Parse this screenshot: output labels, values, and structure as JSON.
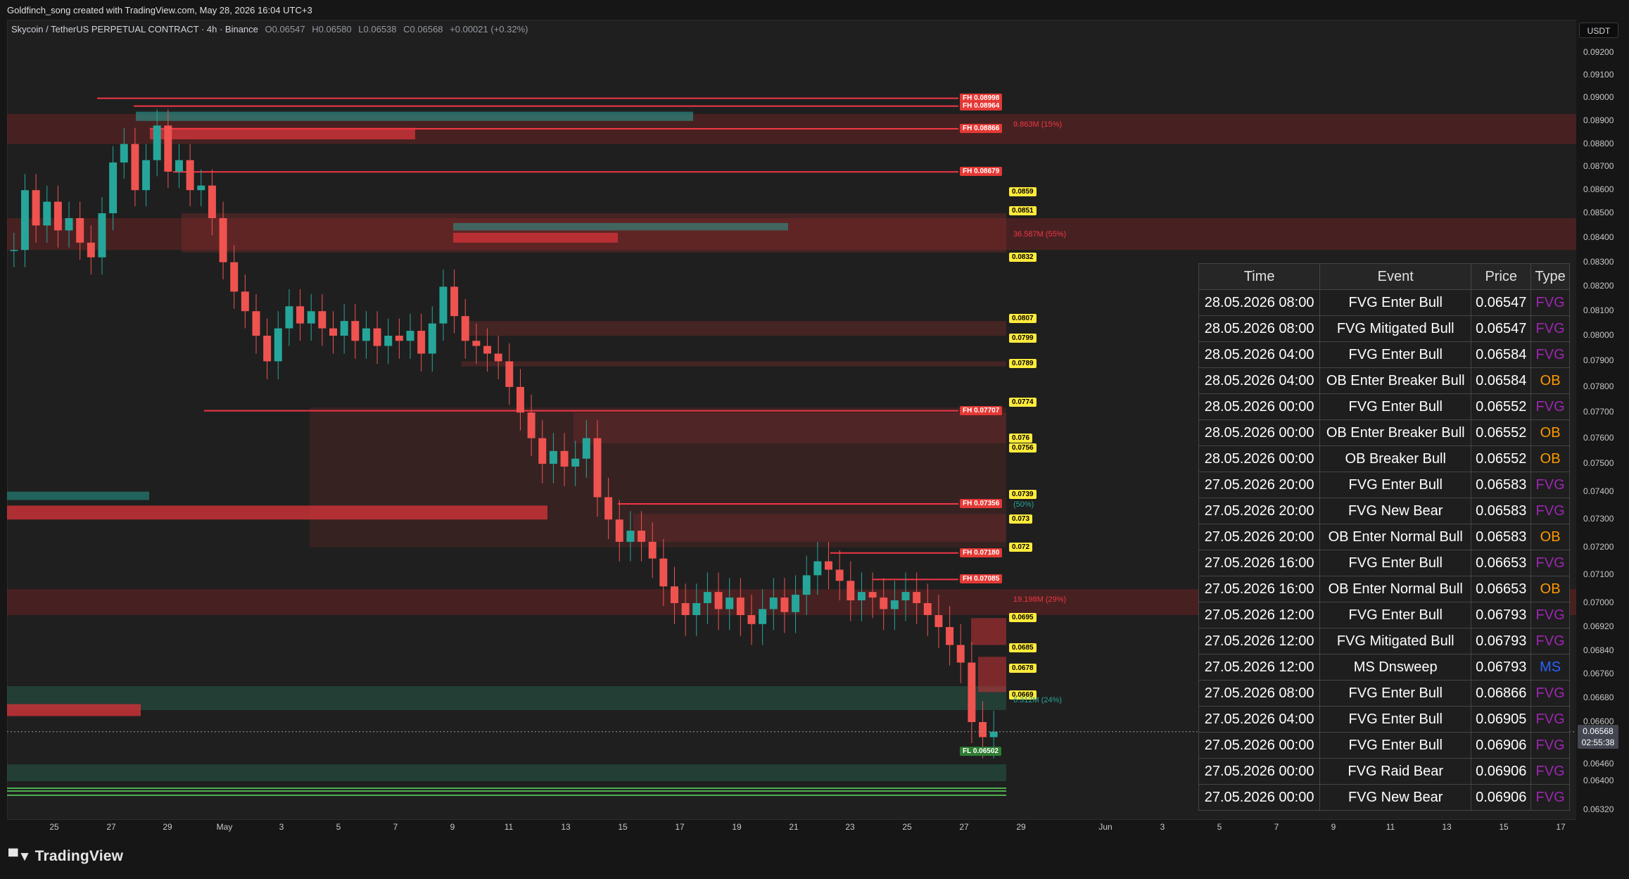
{
  "header": {
    "title": "Goldfinch_song created with TradingView.com, May 28, 2026 16:04 UTC+3"
  },
  "symbol": {
    "name": "Skycoin / TetherUS PERPETUAL CONTRACT · 4h · Binance",
    "o_label": "O",
    "o": "0.06547",
    "h_label": "H",
    "h": "0.06580",
    "l_label": "L",
    "l": "0.06538",
    "c_label": "C",
    "c": "0.06568",
    "change": "+0.00021 (+0.32%)"
  },
  "price_axis": {
    "currency": "USDT",
    "current_price": "0.06568",
    "countdown": "02:55:38"
  },
  "colors": {
    "bull": "#26a69a",
    "bear": "#ef5350",
    "fh_line": "#f23645",
    "level_label": "#ffeb3b",
    "background": "#1f1f1f"
  },
  "chart_data": {
    "type": "candlestick",
    "y_ticks": [
      "0.09200",
      "0.09100",
      "0.09000",
      "0.08900",
      "0.08800",
      "0.08700",
      "0.08600",
      "0.08500",
      "0.08400",
      "0.08300",
      "0.08200",
      "0.08100",
      "0.08000",
      "0.07900",
      "0.07800",
      "0.07700",
      "0.07600",
      "0.07500",
      "0.07400",
      "0.07300",
      "0.07200",
      "0.07100",
      "0.07000",
      "0.06920",
      "0.06840",
      "0.06760",
      "0.06680",
      "0.06600",
      "0.06460",
      "0.06400",
      "0.06320"
    ],
    "x_ticks": [
      "25",
      "27",
      "29",
      "May",
      "3",
      "5",
      "7",
      "9",
      "11",
      "13",
      "15",
      "17",
      "19",
      "21",
      "23",
      "25",
      "27",
      "29",
      "Jun",
      "3",
      "5",
      "7",
      "9",
      "11",
      "13",
      "15",
      "17"
    ],
    "close_path": [
      0.0835,
      0.086,
      0.0845,
      0.0855,
      0.0843,
      0.0848,
      0.0838,
      0.0832,
      0.085,
      0.0872,
      0.088,
      0.086,
      0.0873,
      0.0888,
      0.0868,
      0.0873,
      0.086,
      0.0862,
      0.0848,
      0.083,
      0.0818,
      0.081,
      0.08,
      0.079,
      0.0803,
      0.0812,
      0.0805,
      0.081,
      0.0803,
      0.08,
      0.0806,
      0.0798,
      0.0803,
      0.0796,
      0.08,
      0.0798,
      0.0802,
      0.0793,
      0.0805,
      0.082,
      0.0808,
      0.0798,
      0.0796,
      0.0793,
      0.079,
      0.078,
      0.077,
      0.076,
      0.075,
      0.0755,
      0.0749,
      0.0752,
      0.076,
      0.0738,
      0.073,
      0.0722,
      0.0726,
      0.0722,
      0.0716,
      0.0706,
      0.07,
      0.0696,
      0.07,
      0.0704,
      0.0698,
      0.0702,
      0.0696,
      0.0693,
      0.0698,
      0.0702,
      0.0697,
      0.0703,
      0.071,
      0.0715,
      0.0712,
      0.0708,
      0.0701,
      0.0704,
      0.0702,
      0.0698,
      0.0701,
      0.0704,
      0.07,
      0.0696,
      0.0692,
      0.0686,
      0.068,
      0.066,
      0.0655,
      0.06568
    ],
    "fh_levels": [
      {
        "label": "FH 0.08998",
        "price": 0.08998
      },
      {
        "label": "FH 0.08964",
        "price": 0.08964
      },
      {
        "label": "FH 0.08866",
        "price": 0.08866
      },
      {
        "label": "FH 0.08679",
        "price": 0.08679
      },
      {
        "label": "FH 0.07707",
        "price": 0.07707
      },
      {
        "label": "FH 0.07356",
        "price": 0.07356
      },
      {
        "label": "FH 0.07180",
        "price": 0.0718
      },
      {
        "label": "FH 0.07085",
        "price": 0.07085
      }
    ],
    "fl_level": {
      "label": "FL 0.06502",
      "price": 0.06502
    },
    "levels": [
      "0.0859",
      "0.0851",
      "0.0832",
      "0.0807",
      "0.0799",
      "0.0789",
      "0.0774",
      "0.076",
      "0.0756",
      "0.0739",
      "0.073",
      "0.072",
      "0.0695",
      "0.0685",
      "0.0678",
      "0.0669"
    ],
    "volume_profile": [
      {
        "label": "9.863M (15%)"
      },
      {
        "label": "36.587M (55%)"
      },
      {
        "label": "(50%)"
      },
      {
        "label": "19.198M (29%)"
      },
      {
        "label": "6.312M (24%)"
      }
    ]
  },
  "events_table": {
    "headers": [
      "Time",
      "Event",
      "Price",
      "Type"
    ],
    "rows": [
      [
        "28.05.2026 08:00",
        "FVG Enter Bull",
        "0.06547",
        "FVG"
      ],
      [
        "28.05.2026 08:00",
        "FVG Mitigated Bull",
        "0.06547",
        "FVG"
      ],
      [
        "28.05.2026 04:00",
        "FVG Enter Bull",
        "0.06584",
        "FVG"
      ],
      [
        "28.05.2026 04:00",
        "OB Enter Breaker Bull",
        "0.06584",
        "OB"
      ],
      [
        "28.05.2026 00:00",
        "FVG Enter Bull",
        "0.06552",
        "FVG"
      ],
      [
        "28.05.2026 00:00",
        "OB Enter Breaker Bull",
        "0.06552",
        "OB"
      ],
      [
        "28.05.2026 00:00",
        "OB Breaker Bull",
        "0.06552",
        "OB"
      ],
      [
        "27.05.2026 20:00",
        "FVG Enter Bull",
        "0.06583",
        "FVG"
      ],
      [
        "27.05.2026 20:00",
        "FVG New Bear",
        "0.06583",
        "FVG"
      ],
      [
        "27.05.2026 20:00",
        "OB Enter Normal Bull",
        "0.06583",
        "OB"
      ],
      [
        "27.05.2026 16:00",
        "FVG Enter Bull",
        "0.06653",
        "FVG"
      ],
      [
        "27.05.2026 16:00",
        "OB Enter Normal Bull",
        "0.06653",
        "OB"
      ],
      [
        "27.05.2026 12:00",
        "FVG Enter Bull",
        "0.06793",
        "FVG"
      ],
      [
        "27.05.2026 12:00",
        "FVG Mitigated Bull",
        "0.06793",
        "FVG"
      ],
      [
        "27.05.2026 12:00",
        "MS Dnsweep",
        "0.06793",
        "MS"
      ],
      [
        "27.05.2026 08:00",
        "FVG Enter Bull",
        "0.06866",
        "FVG"
      ],
      [
        "27.05.2026 04:00",
        "FVG Enter Bull",
        "0.06905",
        "FVG"
      ],
      [
        "27.05.2026 00:00",
        "FVG Enter Bull",
        "0.06906",
        "FVG"
      ],
      [
        "27.05.2026 00:00",
        "FVG Raid Bear",
        "0.06906",
        "FVG"
      ],
      [
        "27.05.2026 00:00",
        "FVG New Bear",
        "0.06906",
        "FVG"
      ]
    ]
  },
  "branding": {
    "logo_text": "TradingView"
  }
}
